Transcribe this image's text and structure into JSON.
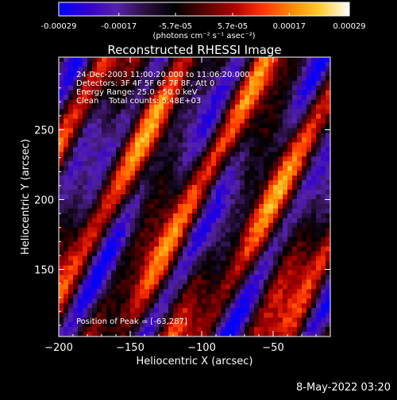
{
  "colorbar": {
    "tick_labels": [
      "-0.00029",
      "-0.00017",
      "-5.7e-05",
      "5.7e-05",
      "0.00017",
      "0.00029"
    ],
    "tick_values": [
      -0.00029,
      -0.00017,
      -5.7e-05,
      5.7e-05,
      0.00017,
      0.00029
    ],
    "range": [
      -0.00029,
      0.00029
    ],
    "unit_label": "(photons cm⁻² s⁻¹ asec⁻²)"
  },
  "chart_data": {
    "type": "heatmap",
    "title": "Reconstructed RHESSI Image",
    "xlabel": "Heliocentric X (arcsec)",
    "ylabel": "Heliocentric Y (arcsec)",
    "xlim": [
      -200,
      -10
    ],
    "ylim": [
      102,
      302
    ],
    "x_ticks": [
      -200,
      -150,
      -100,
      -50
    ],
    "y_ticks": [
      150,
      200,
      250
    ],
    "x_tick_labels": [
      "−200",
      "−150",
      "−100",
      "−50"
    ],
    "y_tick_labels": [
      "150",
      "200",
      "250"
    ],
    "info_lines": [
      "24-Dec-2003 11:00:20.000 to 11:06:20.000",
      "Detectors: 3F 4F 5F 6F 7F 8F, Att 0",
      "Energy Range: 25.0 - 50.0 keV",
      "Clean    Total counts: 5.48E+03"
    ],
    "peak_label": "Position of Peak = [-63,287]",
    "peak_position": [
      -63,
      287
    ],
    "grid": false,
    "colormap": [
      "#0000ff",
      "#3300cc",
      "#5522aa",
      "#2a1040",
      "#000000",
      "#550000",
      "#aa0000",
      "#ff3300",
      "#ff8800",
      "#ffcc33",
      "#ffffff"
    ]
  },
  "footer": {
    "timestamp": "8-May-2022 03:20"
  }
}
